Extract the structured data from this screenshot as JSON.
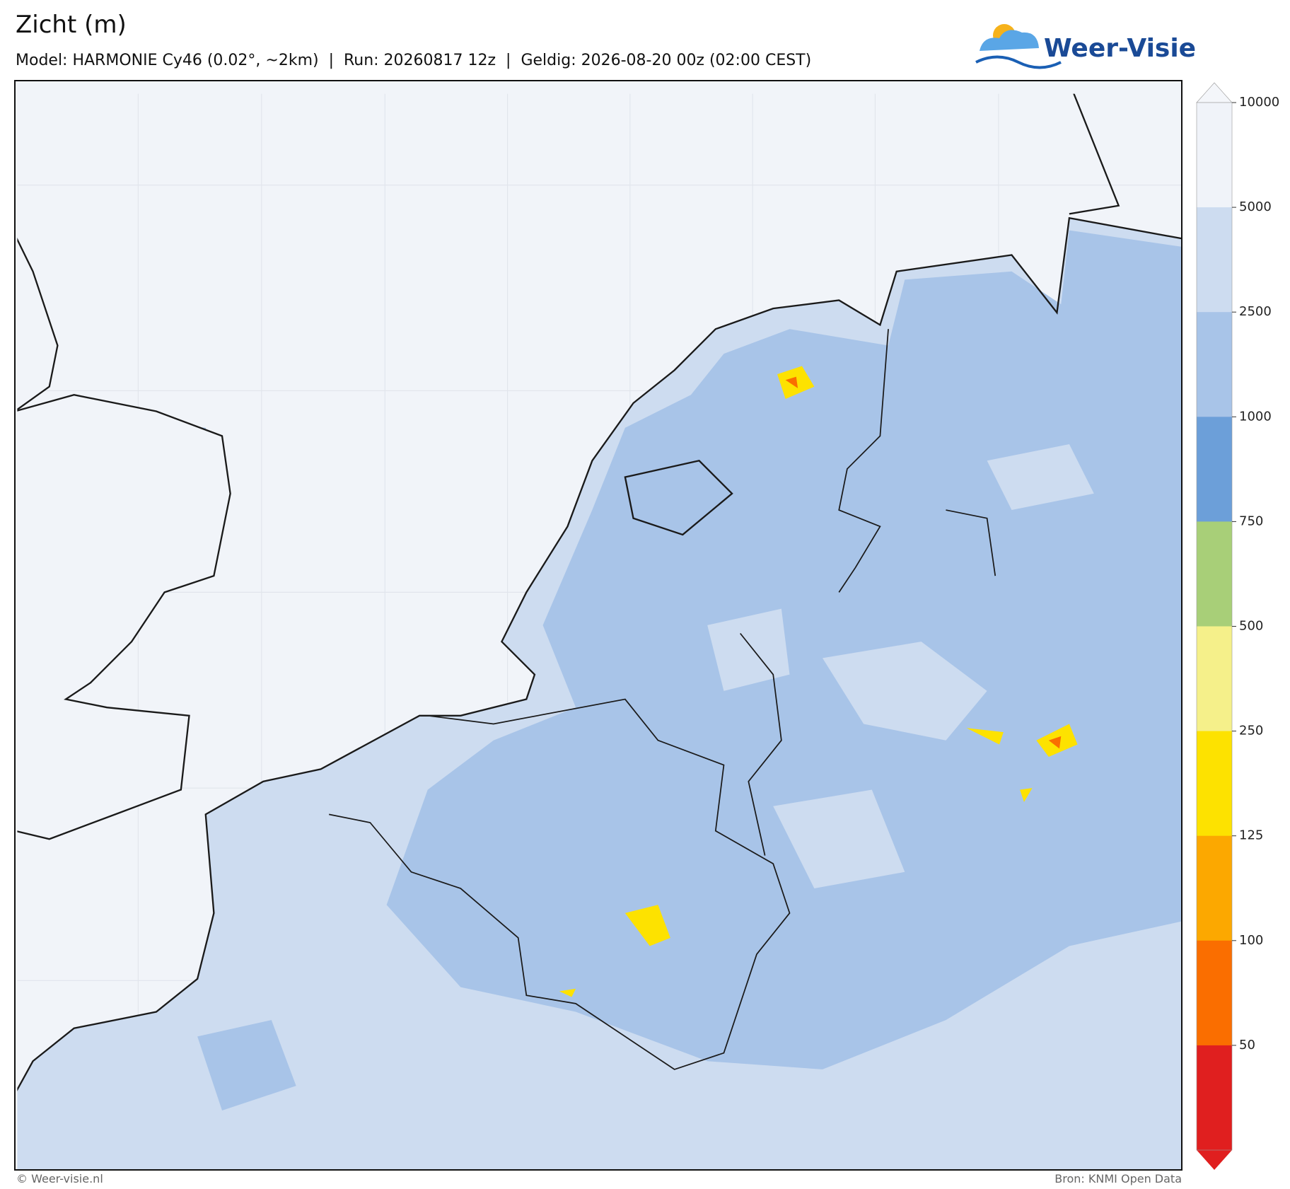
{
  "header": {
    "title": "Zicht (m)",
    "subtitle": "Model: HARMONIE Cy46 (0.02°, ~2km)  |  Run: 20260817 12z  |  Geldig: 2026-08-20 00z (02:00 CEST)"
  },
  "logo": {
    "text": "Weer-Visie"
  },
  "colorbar": {
    "ticks": [
      10000,
      5000,
      2500,
      1000,
      750,
      500,
      250,
      125,
      100,
      50
    ],
    "colors": [
      "#f0f3f9",
      "#cddcf0",
      "#a8c4e8",
      "#6c9fd9",
      "#a8cf78",
      "#f5f08a",
      "#fde200",
      "#fca800",
      "#fa6e00",
      "#e01f1f"
    ],
    "over_color": "#f4f6fa"
  },
  "footer": {
    "left": "© Weer-visie.nl",
    "right": "Bron: KNMI Open Data"
  }
}
